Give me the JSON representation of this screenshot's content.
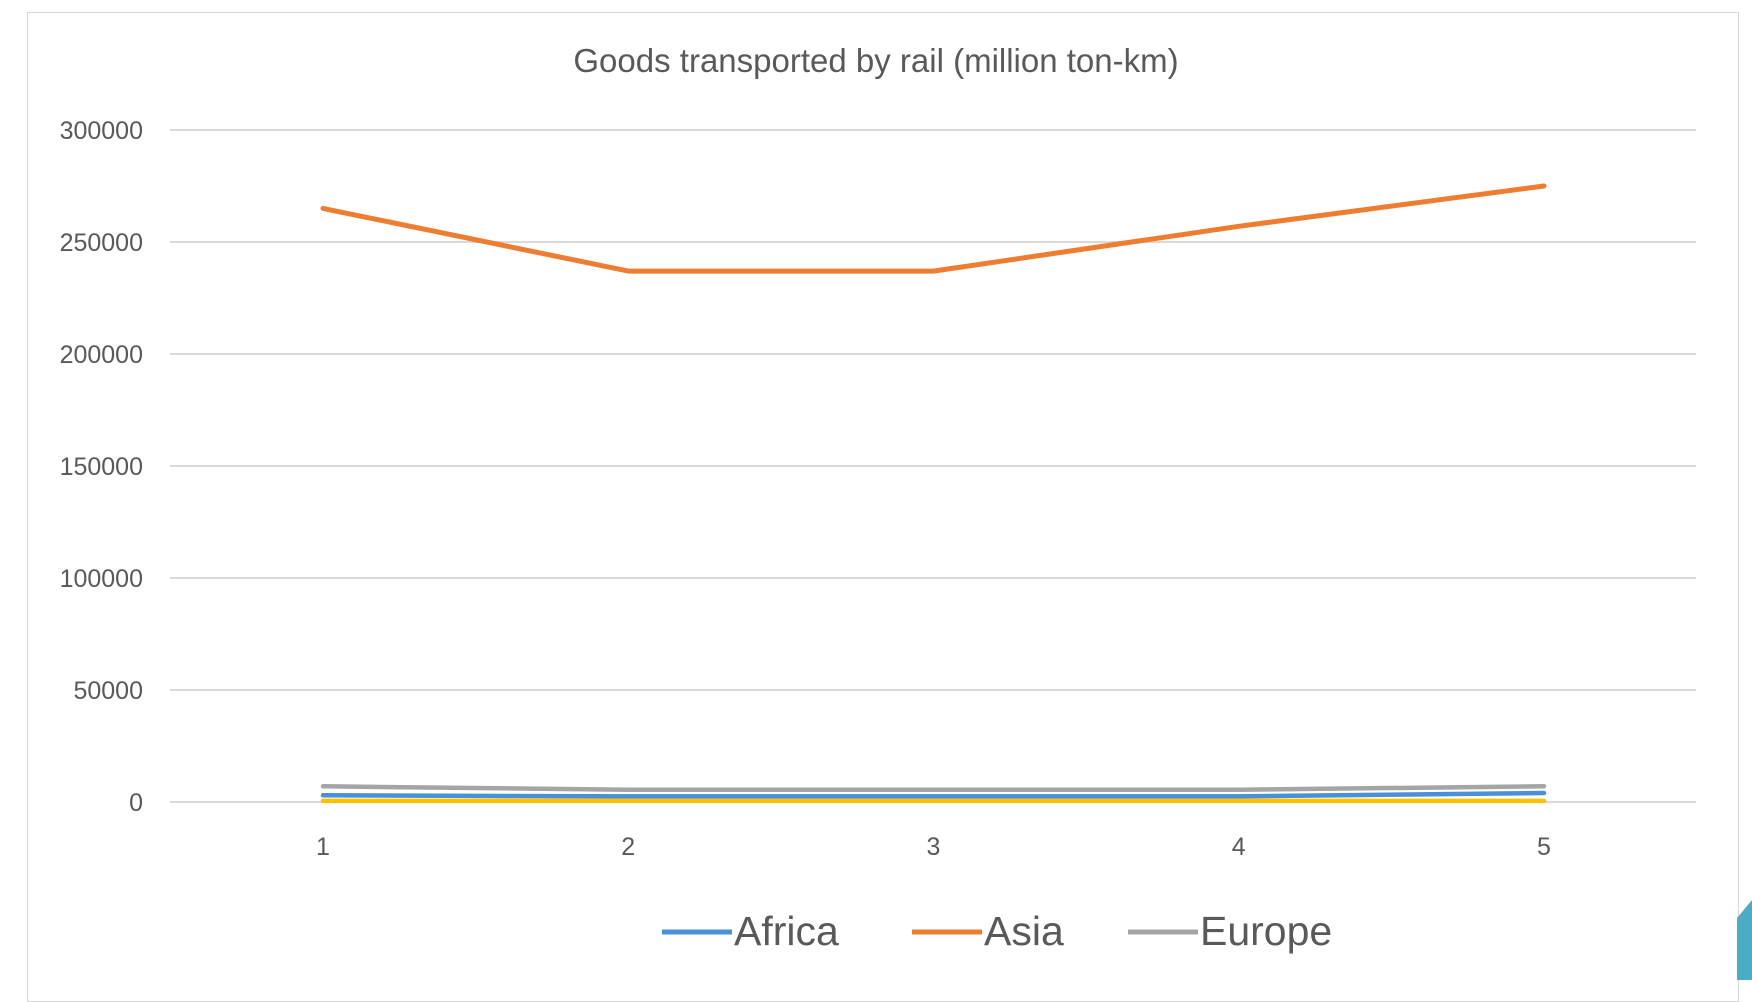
{
  "chart_data": {
    "type": "line",
    "title": "Goods transported by rail (million ton-km)",
    "xlabel": "",
    "ylabel": "",
    "categories": [
      "1",
      "2",
      "3",
      "4",
      "5"
    ],
    "ylim": [
      0,
      300000
    ],
    "yticks": [
      "0",
      "50000",
      "100000",
      "150000",
      "200000",
      "250000",
      "300000"
    ],
    "grid": true,
    "legend_position": "bottom",
    "series": [
      {
        "name": "Africa",
        "color": "#4a8fd8",
        "values": [
          3000,
          2500,
          2500,
          2500,
          4000
        ]
      },
      {
        "name": "Asia",
        "color": "#ed7d31",
        "values": [
          265000,
          237000,
          237000,
          257000,
          275000
        ]
      },
      {
        "name": "Europe",
        "color": "#a5a5a5",
        "values": [
          7000,
          5500,
          5500,
          5500,
          7000
        ]
      },
      {
        "name": "",
        "color": "#ffc000",
        "values": [
          500,
          500,
          500,
          500,
          500
        ]
      }
    ]
  },
  "colors": {
    "gridline": "#d9d9d9",
    "tick_text": "#595959",
    "title_text": "#595959",
    "accent": "#4bacc6"
  }
}
